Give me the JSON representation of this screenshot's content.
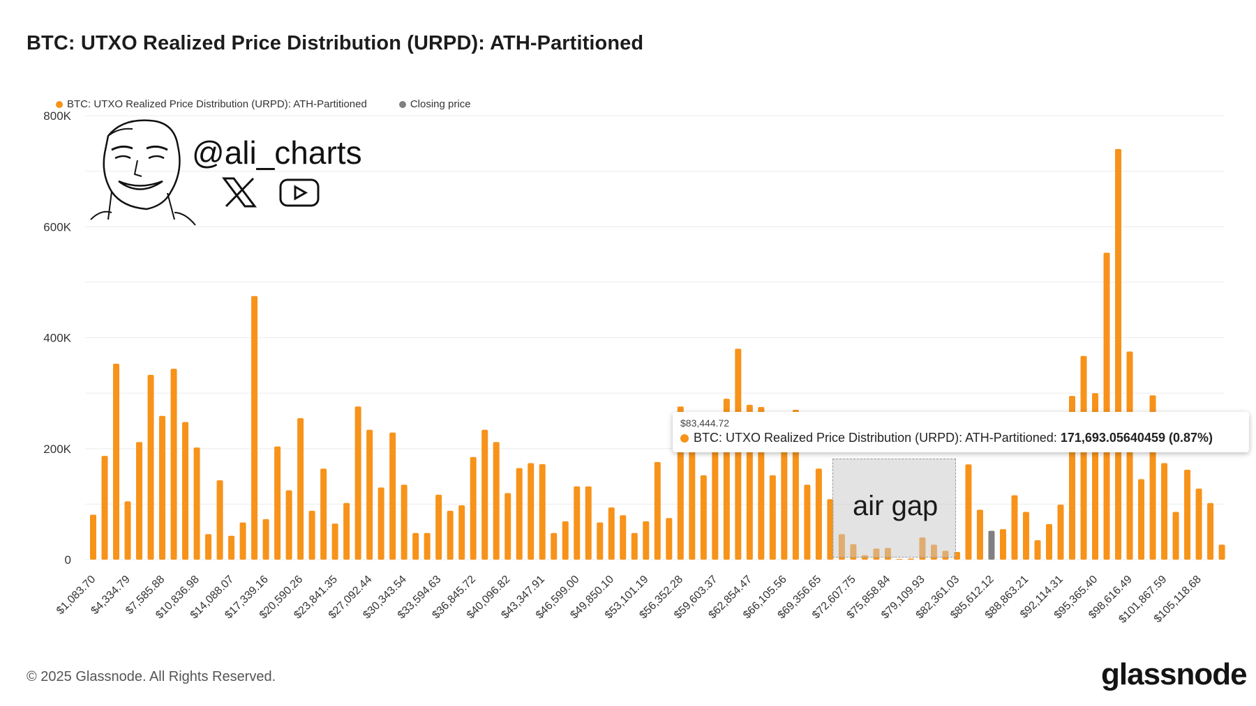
{
  "title": "BTC: UTXO Realized Price Distribution (URPD): ATH-Partitioned",
  "legend": [
    {
      "label": "BTC: UTXO Realized Price Distribution (URPD): ATH-Partitioned",
      "color": "#f7931a"
    },
    {
      "label": "Closing price",
      "color": "#808080"
    }
  ],
  "watermark": {
    "handle": "@ali_charts",
    "icons": [
      "x-logo-icon",
      "youtube-icon"
    ]
  },
  "tooltip": {
    "date": "$83,444.72",
    "series": "BTC: UTXO Realized Price Distribution (URPD): ATH-Partitioned:",
    "value": "171,693.05640459 (0.87%)"
  },
  "annotation": {
    "label": "air gap"
  },
  "footer": {
    "copyright": "© 2025 Glassnode. All Rights Reserved.",
    "brand": "glassnode"
  },
  "colors": {
    "bar": "#f7931a",
    "closing": "#808080",
    "grid": "#ececec"
  },
  "chart_data": {
    "type": "bar",
    "title": "BTC: UTXO Realized Price Distribution (URPD): ATH-Partitioned",
    "ylim": [
      0,
      800000
    ],
    "yticks": [
      0,
      200000,
      400000,
      600000,
      800000
    ],
    "ytick_labels": [
      "0",
      "200K",
      "400K",
      "600K",
      "800K"
    ],
    "xtick_labels": [
      "$1,083.70",
      "$4,334.79",
      "$7,585.88",
      "$10,836.98",
      "$14,088.07",
      "$17,339.16",
      "$20,590.26",
      "$23,841.35",
      "$27,092.44",
      "$30,343.54",
      "$33,594.63",
      "$36,845.72",
      "$40,096.82",
      "$43,347.91",
      "$46,599.00",
      "$49,850.10",
      "$53,101.19",
      "$56,352.28",
      "$59,603.37",
      "$62,854.47",
      "$66,105.56",
      "$69,356.65",
      "$72,607.75",
      "$75,858.84",
      "$79,109.93",
      "$82,361.03",
      "$85,612.12",
      "$88,863.21",
      "$92,114.31",
      "$95,365.40",
      "$98,616.49",
      "$101,867.59",
      "$105,118.68"
    ],
    "closing_price_index": 78,
    "values": [
      81000,
      187000,
      353000,
      105000,
      212000,
      333000,
      259000,
      344000,
      248000,
      202000,
      46000,
      143000,
      43000,
      67000,
      475000,
      73000,
      204000,
      125000,
      255000,
      88000,
      164000,
      65000,
      102000,
      276000,
      234000,
      130000,
      229000,
      135000,
      48000,
      48000,
      117000,
      88000,
      98000,
      185000,
      234000,
      212000,
      120000,
      165000,
      174000,
      172000,
      48000,
      69000,
      132000,
      132000,
      67000,
      94000,
      80000,
      48000,
      69000,
      176000,
      75000,
      276000,
      221000,
      152000,
      240000,
      290000,
      380000,
      279000,
      275000,
      152000,
      245000,
      270000,
      135000,
      164000,
      109000,
      46000,
      28000,
      8000,
      20000,
      21000,
      1000,
      2000,
      40000,
      27000,
      16000,
      14000,
      171693,
      90000,
      52000,
      55000,
      116000,
      86000,
      35000,
      64000,
      99000,
      295000,
      367000,
      300000,
      553000,
      740000,
      375000,
      145000,
      296000,
      174000,
      86000,
      162000,
      128000,
      102000,
      27000
    ]
  }
}
